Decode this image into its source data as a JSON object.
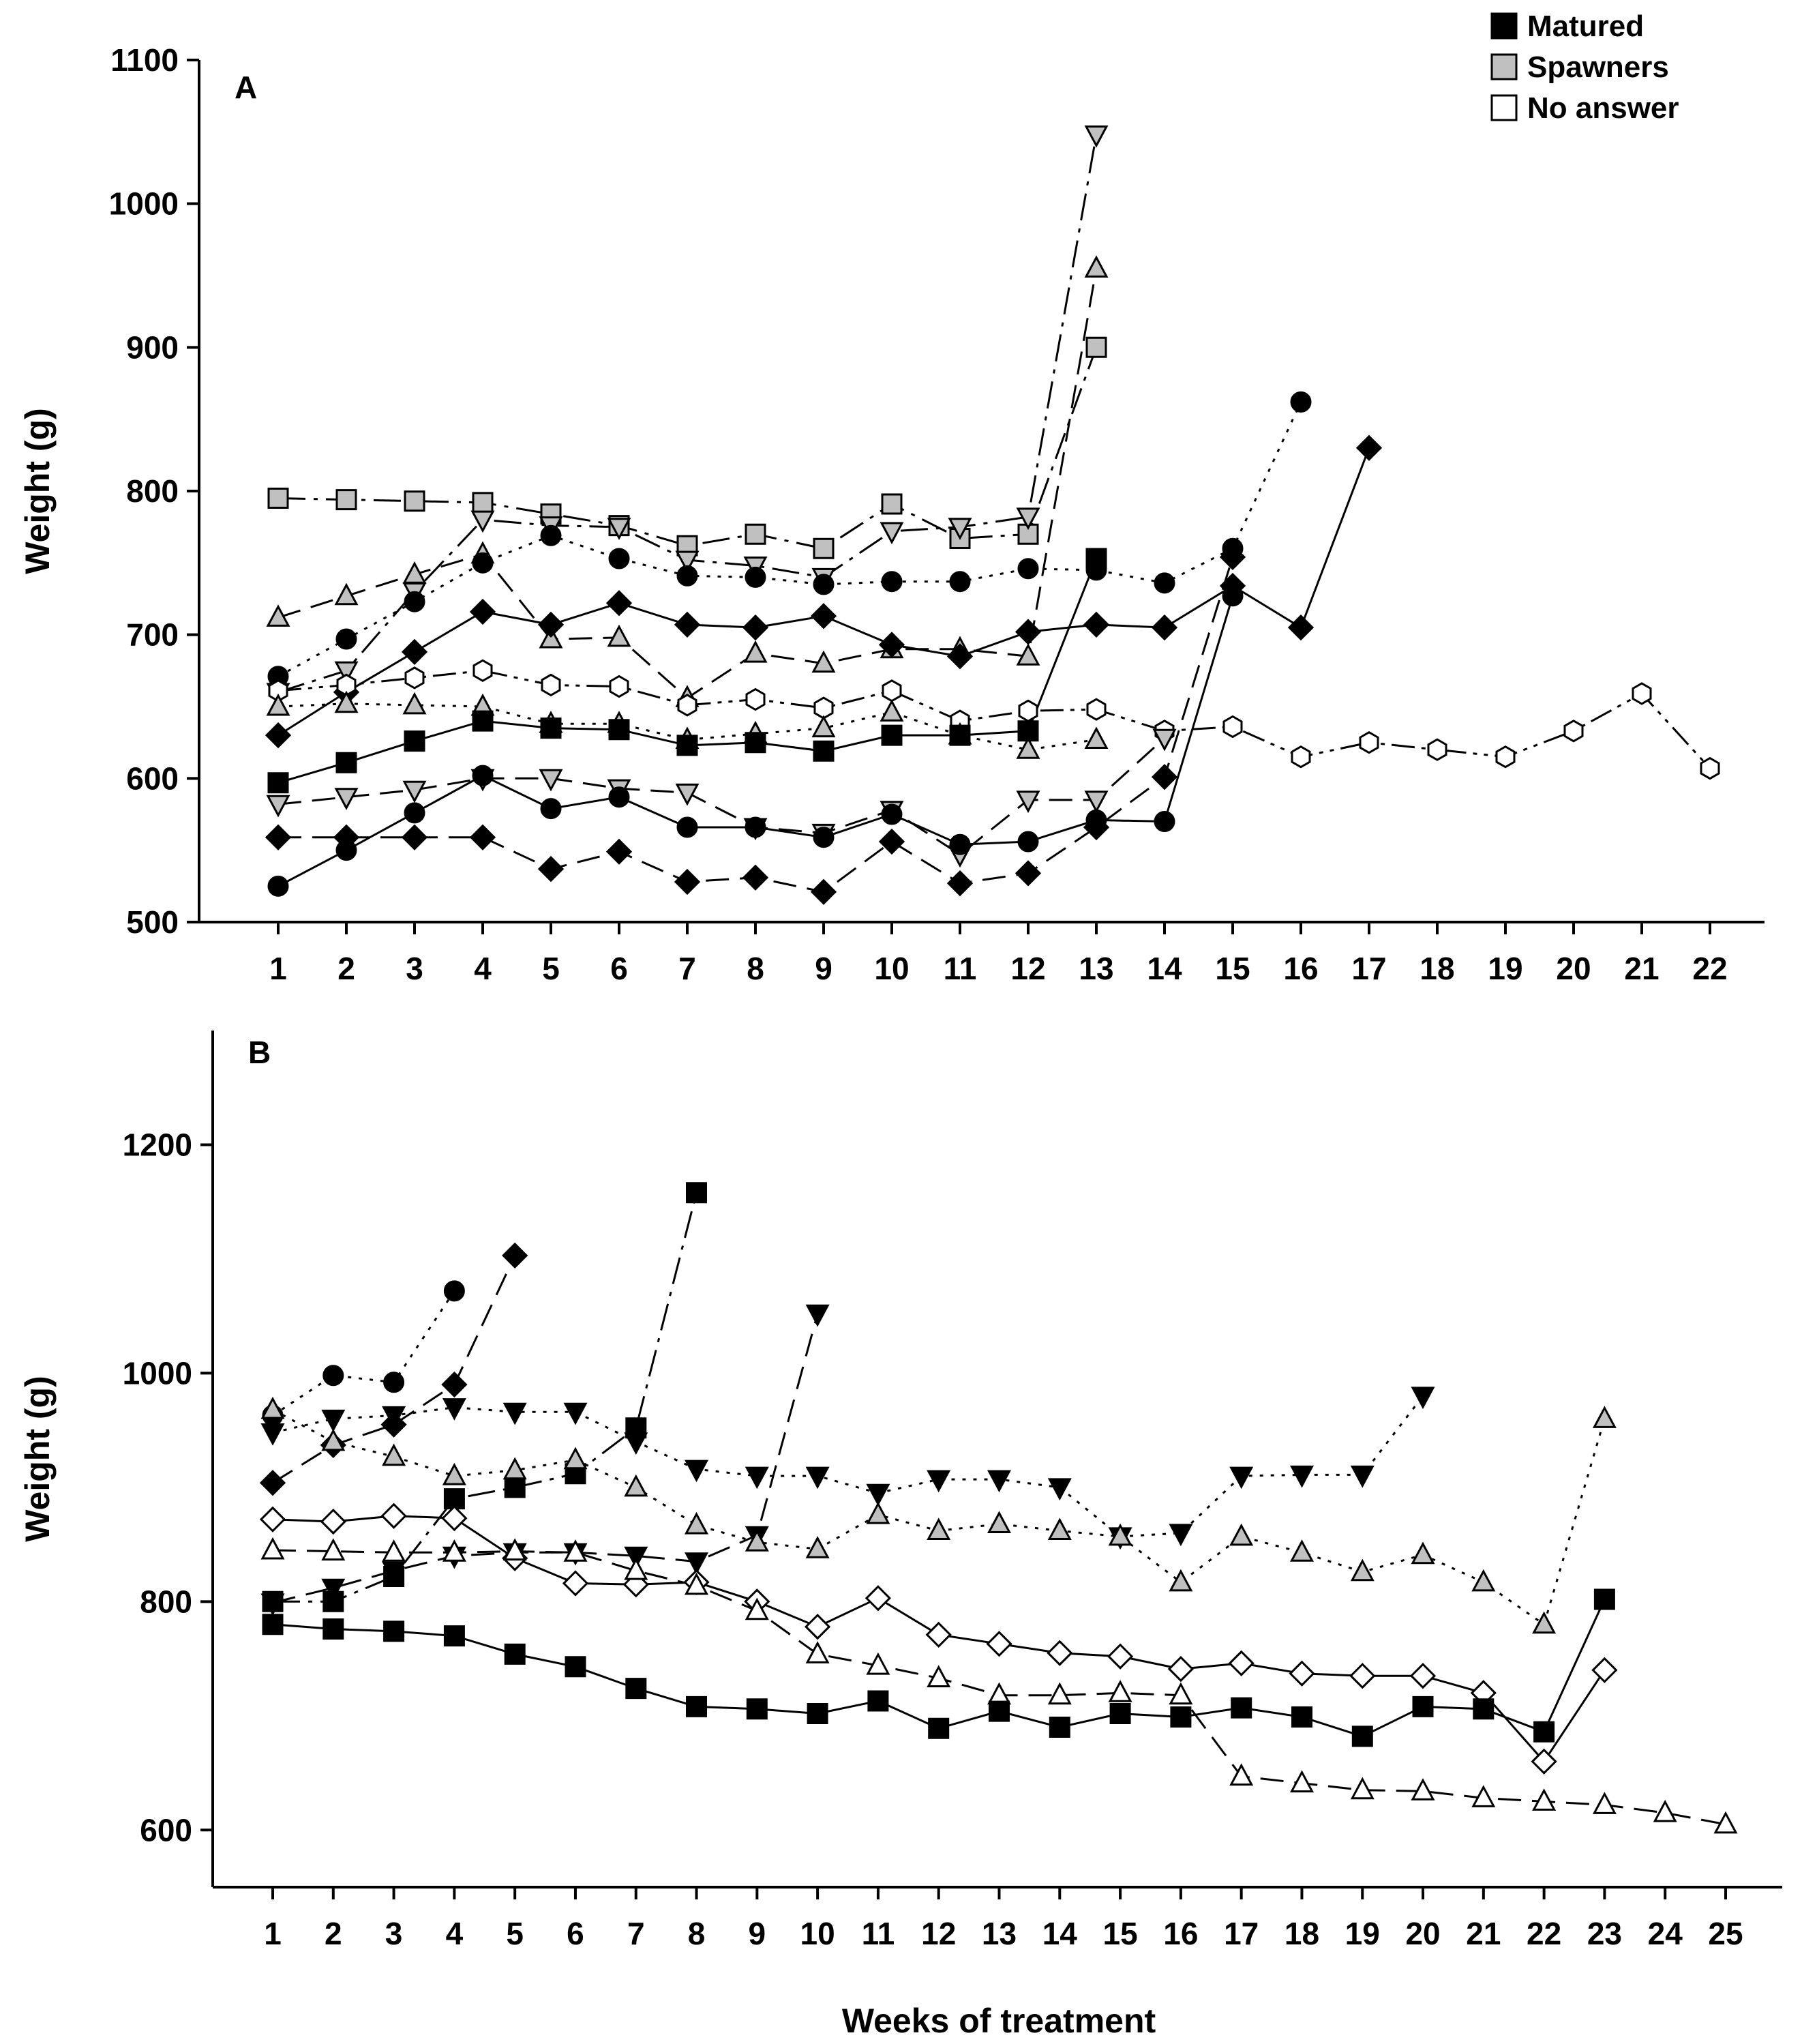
{
  "colors": {
    "matured": "#000000",
    "spawners": "#c0c0c0",
    "no_answer": "#ffffff"
  },
  "legend": [
    {
      "label": "Matured",
      "fill": "#000000"
    },
    {
      "label": "Spawners",
      "fill": "#c0c0c0"
    },
    {
      "label": "No answer",
      "fill": "#ffffff"
    }
  ],
  "xlabel": "Weeks of treatment",
  "chart_data": [
    {
      "panel": "A",
      "type": "line",
      "ylabel": "Weight (g)",
      "xlabel": "Weeks of treatment",
      "ylim": [
        500,
        1100
      ],
      "yticks": [
        "500",
        "600",
        "700",
        "800",
        "900",
        "1000",
        "1100"
      ],
      "xticks": [
        "1",
        "2",
        "3",
        "4",
        "5",
        "6",
        "7",
        "8",
        "9",
        "10",
        "11",
        "12",
        "13",
        "14",
        "15",
        "16",
        "17",
        "18",
        "19",
        "20",
        "21",
        "22"
      ],
      "series": [
        {
          "name": "Spawner square",
          "status": "Spawners",
          "marker": "square",
          "dash": "dashdot",
          "x": [
            1,
            2,
            3,
            4,
            5,
            6,
            7,
            8,
            9,
            10,
            11,
            12,
            13
          ],
          "y": [
            795,
            794,
            793,
            792,
            784,
            776,
            762,
            770,
            760,
            791,
            767,
            770,
            900
          ]
        },
        {
          "name": "Spawner down-triangle",
          "status": "Spawners",
          "marker": "tri-down",
          "dash": "dashdot",
          "x": [
            1,
            2,
            3,
            4,
            5,
            6,
            7,
            8,
            9,
            10,
            11,
            12,
            13
          ],
          "y": [
            660,
            675,
            730,
            780,
            776,
            775,
            752,
            748,
            740,
            772,
            775,
            782,
            1048
          ]
        },
        {
          "name": "Spawner up-triangle",
          "status": "Spawners",
          "marker": "tri-up",
          "dash": "dashed",
          "x": [
            1,
            2,
            3,
            4,
            5,
            6,
            7,
            8,
            9,
            10,
            11,
            12,
            13
          ],
          "y": [
            712,
            727,
            742,
            756,
            697,
            698,
            656,
            687,
            680,
            690,
            690,
            685,
            955
          ]
        },
        {
          "name": "Matured circle upper",
          "status": "Matured",
          "marker": "circle",
          "dash": "dotted",
          "x": [
            1,
            2,
            3,
            4,
            5,
            6,
            7,
            8,
            9,
            10,
            11,
            12,
            13,
            14,
            15,
            16
          ],
          "y": [
            671,
            697,
            723,
            750,
            769,
            753,
            741,
            740,
            735,
            737,
            737,
            746,
            745,
            736,
            760,
            862
          ]
        },
        {
          "name": "Matured diamond upper",
          "status": "Matured",
          "marker": "diamond",
          "dash": "solid",
          "x": [
            1,
            2,
            3,
            4,
            5,
            6,
            7,
            8,
            9,
            10,
            11,
            12,
            13,
            14,
            15,
            16,
            17
          ],
          "y": [
            630,
            660,
            688,
            716,
            707,
            722,
            707,
            705,
            713,
            693,
            685,
            702,
            707,
            705,
            734,
            705,
            830
          ]
        },
        {
          "name": "No answer hexagon",
          "status": "No answer",
          "marker": "hexagon",
          "dash": "dashdotdot",
          "x": [
            1,
            2,
            3,
            4,
            5,
            6,
            7,
            8,
            9,
            10,
            11,
            12,
            13,
            14,
            15,
            16,
            17,
            18,
            19,
            20,
            21,
            22
          ],
          "y": [
            661,
            665,
            670,
            675,
            665,
            664,
            651,
            655,
            649,
            661,
            640,
            647,
            648,
            633,
            636,
            615,
            625,
            620,
            615,
            633,
            659,
            607
          ]
        },
        {
          "name": "Spawner up-triangle lower",
          "status": "Spawners",
          "marker": "tri-up",
          "dash": "dotted",
          "x": [
            1,
            2,
            3,
            4,
            5,
            6,
            7,
            8,
            9,
            10,
            11,
            12,
            13
          ],
          "y": [
            650,
            652,
            651,
            650,
            638,
            638,
            627,
            631,
            635,
            646,
            630,
            620,
            627
          ]
        },
        {
          "name": "Matured square",
          "status": "Matured",
          "marker": "square",
          "dash": "solid",
          "x": [
            1,
            2,
            3,
            4,
            5,
            6,
            7,
            8,
            9,
            10,
            11,
            12,
            13
          ],
          "y": [
            597,
            611,
            626,
            640,
            635,
            634,
            623,
            625,
            619,
            630,
            630,
            633,
            753
          ]
        },
        {
          "name": "Spawner down-triangle lower",
          "status": "Spawners",
          "marker": "tri-down",
          "dash": "dashed",
          "x": [
            1,
            2,
            3,
            4,
            5,
            6,
            7,
            8,
            9,
            10,
            11,
            12,
            13,
            14
          ],
          "y": [
            582,
            587,
            592,
            600,
            600,
            593,
            590,
            566,
            562,
            578,
            547,
            585,
            585,
            628
          ]
        },
        {
          "name": "Matured circle lower",
          "status": "Matured",
          "marker": "circle",
          "dash": "solid",
          "x": [
            1,
            2,
            3,
            4,
            5,
            6,
            7,
            8,
            9,
            10,
            11,
            12,
            13,
            14,
            15
          ],
          "y": [
            525,
            550,
            576,
            602,
            579,
            587,
            566,
            566,
            559,
            575,
            554,
            556,
            571,
            570,
            727
          ]
        },
        {
          "name": "Matured diamond lower",
          "status": "Matured",
          "marker": "diamond",
          "dash": "dashed",
          "x": [
            1,
            2,
            3,
            4,
            5,
            6,
            7,
            8,
            9,
            10,
            11,
            12,
            13,
            14,
            15
          ],
          "y": [
            559,
            559,
            559,
            559,
            537,
            549,
            528,
            531,
            521,
            556,
            527,
            534,
            566,
            601,
            754
          ]
        }
      ]
    },
    {
      "panel": "B",
      "type": "line",
      "ylabel": "Weight (g)",
      "xlabel": "Weeks of treatment",
      "ylim": [
        550,
        1300
      ],
      "yticks": [
        "600",
        "800",
        "1000",
        "1200"
      ],
      "xticks": [
        "1",
        "2",
        "3",
        "4",
        "5",
        "6",
        "7",
        "8",
        "9",
        "10",
        "11",
        "12",
        "13",
        "14",
        "15",
        "16",
        "17",
        "18",
        "19",
        "20",
        "21",
        "22",
        "23",
        "24",
        "25"
      ],
      "series": [
        {
          "name": "Matured circle",
          "status": "Matured",
          "marker": "circle",
          "dash": "dotted",
          "x": [
            1,
            2,
            3,
            4
          ],
          "y": [
            963,
            998,
            992,
            1072
          ]
        },
        {
          "name": "Matured diamond",
          "status": "Matured",
          "marker": "diamond",
          "dash": "dashed",
          "x": [
            1,
            2,
            3,
            4,
            5
          ],
          "y": [
            904,
            937,
            955,
            990,
            1103
          ]
        },
        {
          "name": "Matured square jump",
          "status": "Matured",
          "marker": "square",
          "dash": "dashdot",
          "x": [
            1,
            2,
            3,
            4,
            5,
            6,
            7,
            8
          ],
          "y": [
            800,
            800,
            822,
            890,
            900,
            912,
            952,
            1158
          ]
        },
        {
          "name": "Matured down-triangle short",
          "status": "Matured",
          "marker": "tri-down",
          "dash": "dashed",
          "x": [
            1,
            2,
            3,
            4,
            5,
            6,
            7,
            8,
            9,
            10
          ],
          "y": [
            799,
            812,
            827,
            840,
            843,
            843,
            840,
            835,
            858,
            1052
          ]
        },
        {
          "name": "Matured down-triangle long",
          "status": "Matured",
          "marker": "tri-down",
          "dash": "dotted",
          "x": [
            1,
            2,
            3,
            4,
            5,
            6,
            7,
            8,
            9,
            10,
            11,
            12,
            13,
            14,
            15,
            16,
            17,
            18,
            19,
            20
          ],
          "y": [
            948,
            960,
            963,
            970,
            966,
            966,
            940,
            916,
            910,
            910,
            895,
            907,
            907,
            900,
            857,
            860,
            910,
            911,
            911,
            980
          ]
        },
        {
          "name": "Spawner up-triangle",
          "status": "Spawners",
          "marker": "tri-up",
          "dash": "dotted",
          "x": [
            1,
            2,
            3,
            4,
            5,
            6,
            7,
            8,
            9,
            10,
            11,
            12,
            13,
            14,
            15,
            16,
            17,
            18,
            19,
            20,
            21,
            22,
            23
          ],
          "y": [
            968,
            940,
            927,
            910,
            915,
            924,
            900,
            867,
            852,
            846,
            876,
            862,
            868,
            862,
            857,
            817,
            857,
            843,
            826,
            841,
            817,
            780,
            960
          ]
        },
        {
          "name": "No answer diamond",
          "status": "No answer",
          "marker": "diamond",
          "dash": "solid",
          "x": [
            1,
            2,
            3,
            4,
            5,
            6,
            7,
            8,
            9,
            10,
            11,
            12,
            13,
            14,
            15,
            16,
            17,
            18,
            19,
            20,
            21,
            22,
            23
          ],
          "y": [
            872,
            870,
            875,
            873,
            838,
            816,
            815,
            817,
            800,
            778,
            803,
            771,
            763,
            755,
            752,
            741,
            746,
            737,
            735,
            735,
            720,
            660,
            740
          ]
        },
        {
          "name": "No answer up-triangle",
          "status": "No answer",
          "marker": "tri-up",
          "dash": "dashed",
          "x": [
            1,
            2,
            3,
            4,
            5,
            6,
            7,
            8,
            9,
            10,
            11,
            12,
            13,
            14,
            15,
            16,
            17,
            18,
            19,
            20,
            21,
            22,
            23,
            24,
            25
          ],
          "y": [
            845,
            844,
            843,
            843,
            844,
            843,
            827,
            814,
            792,
            754,
            744,
            733,
            718,
            718,
            720,
            718,
            647,
            641,
            635,
            634,
            628,
            625,
            622,
            615,
            605
          ]
        },
        {
          "name": "Matured square long",
          "status": "Matured",
          "marker": "square",
          "dash": "solid",
          "x": [
            1,
            2,
            3,
            4,
            5,
            6,
            7,
            8,
            9,
            10,
            11,
            12,
            13,
            14,
            15,
            16,
            17,
            18,
            19,
            20,
            21,
            22,
            23
          ],
          "y": [
            780,
            776,
            774,
            770,
            754,
            743,
            724,
            708,
            706,
            702,
            713,
            689,
            704,
            690,
            702,
            699,
            707,
            699,
            682,
            708,
            706,
            686,
            802
          ]
        }
      ]
    }
  ]
}
